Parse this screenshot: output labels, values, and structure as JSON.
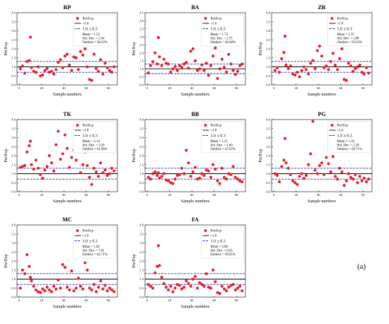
{
  "figure_label": "(a)",
  "colors": {
    "points": "#e8202a",
    "unity_line": "#000000",
    "band_line": "#1f1fb4"
  },
  "chart_data": [
    {
      "type": "scatter",
      "title": "RP",
      "xlabel": "Sample numbers",
      "ylabel": "Pre/Exp",
      "xlim": [
        -2,
        88
      ],
      "ylim": [
        0,
        4.0
      ],
      "xticks": [
        "0",
        "20",
        "40",
        "60",
        "80"
      ],
      "yticks": [
        "0.0",
        "0.5",
        "1.0",
        "1.5",
        "2.0",
        "2.5",
        "3.0",
        "3.5",
        "4.0"
      ],
      "legend": {
        "points": "Pre/Exp",
        "unity": "=1.0",
        "band": "1.0 ± 0.3",
        "mean": "Mean = 1.52",
        "std": "Std. Dev. = 2.44",
        "outliers": "Outliers = 58.33%"
      },
      "x": [
        1,
        3,
        5,
        7,
        9,
        10,
        11,
        13,
        15,
        17,
        19,
        21,
        23,
        25,
        27,
        29,
        31,
        33,
        35,
        37,
        39,
        41,
        43,
        45,
        47,
        49,
        51,
        53,
        55,
        57,
        59,
        61,
        63,
        65,
        67,
        69,
        71,
        73,
        75,
        77,
        79,
        81,
        83,
        85
      ],
      "y": [
        0.9,
        1.05,
        0.65,
        1.3,
        1.35,
        2.65,
        0.95,
        0.75,
        0.7,
        1.0,
        0.5,
        0.55,
        0.8,
        0.9,
        0.7,
        0.75,
        0.6,
        0.85,
        1.25,
        1.4,
        0.95,
        1.6,
        1.7,
        1.1,
        0.8,
        1.55,
        1.5,
        0.85,
        1.85,
        1.65,
        2.0,
        1.0,
        0.3,
        0.25,
        1.7,
        0.9,
        0.75,
        1.4,
        0.6,
        1.2,
        0.95,
        0.8,
        0.7,
        1.0
      ]
    },
    {
      "type": "scatter",
      "title": "BA",
      "xlabel": "Sample numbers",
      "ylabel": "Pre/Exp",
      "xlim": [
        -2,
        88
      ],
      "ylim": [
        0,
        4.5
      ],
      "xticks": [
        "0",
        "20",
        "40",
        "60",
        "80"
      ],
      "yticks": [
        "0.0",
        "0.5",
        "1.0",
        "1.5",
        "2.0",
        "2.5",
        "3.0",
        "3.5",
        "4.0",
        "4.5"
      ],
      "legend": {
        "points": "Pre/Exp",
        "unity": "=1.0",
        "band": "1.0 ± 0.3",
        "mean": "Mean = 1.73",
        "std": "Std. Dev. = 2.75",
        "outliers": "Outliers = 40.48%"
      },
      "x": [
        1,
        3,
        5,
        7,
        9,
        10,
        11,
        13,
        15,
        17,
        19,
        21,
        23,
        25,
        27,
        29,
        31,
        33,
        35,
        37,
        39,
        41,
        43,
        45,
        47,
        49,
        51,
        53,
        55,
        57,
        59,
        61,
        63,
        65,
        67,
        69,
        71,
        73,
        75,
        77,
        79,
        81,
        83,
        85
      ],
      "y": [
        0.75,
        1.2,
        1.45,
        2.0,
        1.3,
        2.95,
        1.75,
        1.2,
        1.6,
        1.35,
        1.3,
        0.8,
        1.0,
        1.15,
        0.9,
        1.2,
        1.1,
        1.3,
        1.4,
        1.05,
        2.1,
        2.25,
        1.5,
        0.9,
        1.0,
        1.25,
        0.9,
        1.35,
        0.6,
        1.2,
        1.8,
        2.3,
        0.4,
        1.0,
        1.6,
        1.1,
        0.8,
        1.9,
        1.3,
        0.9,
        0.65,
        0.85,
        1.2,
        1.3
      ]
    },
    {
      "type": "scatter",
      "title": "ZR",
      "xlabel": "Sample numbers",
      "ylabel": "Pre/Exp",
      "xlim": [
        -2,
        88
      ],
      "ylim": [
        0,
        4.0
      ],
      "xticks": [
        "0",
        "20",
        "40",
        "60",
        "80"
      ],
      "yticks": [
        "0.0",
        "0.5",
        "1.0",
        "1.5",
        "2.0",
        "2.5",
        "3.0",
        "3.5",
        "4.0"
      ],
      "legend": {
        "points": "Pre/Exp",
        "unity": "=1.0",
        "band": "1.0 ± 0.3",
        "mean": "Mean = 1.37",
        "std": "Std. Dev. = 2.08",
        "outliers": "Outliers = 59.52%"
      },
      "x": [
        1,
        3,
        5,
        7,
        9,
        10,
        11,
        13,
        15,
        17,
        19,
        21,
        23,
        25,
        27,
        29,
        31,
        33,
        35,
        37,
        39,
        41,
        43,
        45,
        47,
        49,
        51,
        53,
        55,
        57,
        59,
        61,
        63,
        65,
        67,
        69,
        71,
        73,
        75,
        77,
        79,
        81,
        83,
        85
      ],
      "y": [
        0.8,
        0.95,
        0.7,
        1.45,
        1.8,
        2.7,
        1.1,
        0.9,
        1.05,
        0.6,
        0.55,
        0.7,
        0.45,
        0.8,
        1.0,
        0.85,
        0.6,
        1.2,
        1.35,
        0.9,
        1.9,
        2.15,
        1.6,
        0.95,
        1.05,
        0.85,
        1.3,
        1.75,
        1.1,
        0.85,
        1.45,
        2.0,
        0.3,
        0.25,
        1.2,
        1.05,
        0.75,
        0.9,
        1.0,
        1.1,
        0.7,
        0.6,
        0.95,
        0.65
      ]
    },
    {
      "type": "scatter",
      "title": "TK",
      "xlabel": "Sample numbers",
      "ylabel": "Pre/Exp",
      "xlim": [
        -2,
        88
      ],
      "ylim": [
        0,
        4.0
      ],
      "xticks": [
        "0",
        "20",
        "40",
        "60",
        "80"
      ],
      "yticks": [
        "0.0",
        "0.5",
        "1.0",
        "1.5",
        "2.0",
        "2.5",
        "3.0",
        "3.5",
        "4.0"
      ],
      "legend": {
        "points": "Pre/Exp",
        "unity": "=1.0",
        "band": "1.0 ± 0.3",
        "mean": "Mean = 2.14",
        "std": "Std. Dev. = 3.26",
        "outliers": "Outliers = 61.90%"
      },
      "x": [
        1,
        3,
        5,
        7,
        9,
        10,
        11,
        13,
        15,
        17,
        19,
        21,
        23,
        25,
        27,
        29,
        31,
        33,
        35,
        37,
        39,
        41,
        43,
        45,
        47,
        49,
        51,
        53,
        55,
        57,
        59,
        61,
        63,
        65,
        67,
        69,
        71,
        73,
        75,
        77,
        79,
        81,
        83,
        85
      ],
      "y": [
        1.35,
        1.4,
        1.45,
        2.2,
        2.55,
        2.8,
        1.5,
        1.25,
        1.75,
        1.3,
        0.95,
        0.75,
        1.2,
        1.4,
        2.0,
        1.6,
        1.15,
        2.6,
        3.35,
        1.8,
        2.1,
        3.15,
        2.4,
        1.35,
        1.9,
        2.3,
        1.75,
        2.9,
        1.05,
        1.5,
        2.2,
        1.45,
        0.8,
        0.4,
        1.3,
        1.1,
        0.85,
        1.6,
        1.05,
        1.2,
        0.9,
        1.0,
        1.3,
        1.15
      ]
    },
    {
      "type": "scatter",
      "title": "BB",
      "xlabel": "Sample numbers",
      "ylabel": "Pre/Exp",
      "xlim": [
        -2,
        88
      ],
      "ylim": [
        0,
        4.0
      ],
      "xticks": [
        "0",
        "20",
        "40",
        "60",
        "80"
      ],
      "yticks": [
        "0.0",
        "0.5",
        "1.0",
        "1.5",
        "2.0",
        "2.5",
        "3.0",
        "3.5",
        "4.0"
      ],
      "legend": {
        "points": "Pre/Exp",
        "unity": "=1.0",
        "band": "1.0 ± 0.3",
        "mean": "Mean = 1.25",
        "std": "Std. Dev. = 1.60",
        "outliers": "Outliers = 47.62%"
      },
      "x": [
        1,
        3,
        5,
        7,
        9,
        10,
        11,
        13,
        15,
        17,
        19,
        21,
        23,
        25,
        27,
        29,
        31,
        33,
        35,
        37,
        39,
        41,
        43,
        45,
        47,
        49,
        51,
        53,
        55,
        57,
        59,
        61,
        63,
        65,
        67,
        69,
        71,
        73,
        75,
        77,
        79,
        81,
        83,
        85
      ],
      "y": [
        0.8,
        0.7,
        1.0,
        1.1,
        0.9,
        1.05,
        0.75,
        0.85,
        1.0,
        0.65,
        0.6,
        0.5,
        0.45,
        0.7,
        0.9,
        0.95,
        1.3,
        1.0,
        2.3,
        1.6,
        0.85,
        1.1,
        1.35,
        0.7,
        0.75,
        1.0,
        0.9,
        1.2,
        1.15,
        0.8,
        1.5,
        1.25,
        0.6,
        0.45,
        1.3,
        0.8,
        0.7,
        1.0,
        0.95,
        1.4,
        0.8,
        0.7,
        0.6,
        0.55
      ]
    },
    {
      "type": "scatter",
      "title": "PG",
      "xlabel": "Sample numbers",
      "ylabel": "Pre/Exp",
      "xlim": [
        -2,
        88
      ],
      "ylim": [
        0,
        4.0
      ],
      "xticks": [
        "0",
        "20",
        "40",
        "60",
        "80"
      ],
      "yticks": [
        "0.0",
        "0.5",
        "1.0",
        "1.5",
        "2.0",
        "2.5",
        "3.0",
        "3.5",
        "4.0"
      ],
      "legend": {
        "points": "Pre/Exp",
        "unity": "=1.0",
        "band": "1.0 ± 0.3",
        "mean": "Mean = 1.50",
        "std": "Std. Dev. = 2.38",
        "outliers": "Outliers = 60.71%"
      },
      "x": [
        1,
        3,
        5,
        7,
        9,
        10,
        11,
        13,
        15,
        17,
        19,
        21,
        23,
        25,
        27,
        29,
        31,
        33,
        35,
        37,
        39,
        41,
        43,
        45,
        47,
        49,
        51,
        53,
        55,
        57,
        59,
        61,
        63,
        65,
        67,
        69,
        71,
        73,
        75,
        77,
        79,
        81,
        83,
        85
      ],
      "y": [
        1.0,
        0.9,
        0.55,
        1.4,
        1.75,
        2.95,
        1.6,
        1.3,
        0.95,
        0.6,
        0.5,
        0.4,
        0.85,
        1.0,
        0.75,
        0.9,
        1.5,
        2.1,
        3.9,
        1.2,
        1.0,
        1.45,
        1.6,
        0.95,
        1.9,
        1.55,
        1.1,
        1.95,
        0.85,
        0.7,
        1.3,
        1.1,
        0.35,
        0.6,
        1.0,
        0.8,
        0.7,
        0.95,
        0.5,
        0.85,
        0.6,
        0.75,
        0.55,
        0.7
      ]
    },
    {
      "type": "scatter",
      "title": "MC",
      "xlabel": "Sample numbers",
      "ylabel": "Pre/Exp",
      "xlim": [
        -2,
        88
      ],
      "ylim": [
        0,
        4.0
      ],
      "xticks": [
        "0",
        "20",
        "40",
        "60",
        "80"
      ],
      "yticks": [
        "0.0",
        "0.5",
        "1.0",
        "1.5",
        "2.0",
        "2.5",
        "3.0",
        "3.5",
        "4.0"
      ],
      "legend": {
        "points": "Pre/Exp",
        "unity": "=1.0",
        "band": "1.0 ± 0.3",
        "mean": "Mean = 1.82",
        "std": "Std. Dev. = 7.61",
        "outliers": "Outliers = 85.71%"
      },
      "x": [
        1,
        3,
        5,
        7,
        9,
        10,
        11,
        13,
        15,
        17,
        19,
        21,
        23,
        25,
        27,
        29,
        31,
        33,
        35,
        37,
        39,
        41,
        43,
        45,
        47,
        49,
        51,
        53,
        55,
        57,
        59,
        61,
        63,
        65,
        67,
        69,
        71,
        73,
        75,
        77,
        79,
        81,
        83,
        85
      ],
      "y": [
        0.5,
        1.5,
        1.3,
        2.35,
        1.7,
        1.1,
        0.9,
        0.6,
        0.4,
        0.3,
        0.25,
        0.45,
        0.35,
        0.55,
        0.4,
        0.3,
        0.6,
        0.45,
        0.95,
        0.5,
        1.8,
        1.65,
        0.55,
        0.4,
        1.45,
        0.35,
        0.5,
        1.05,
        0.6,
        0.45,
        1.9,
        1.5,
        0.5,
        0.4,
        0.7,
        0.3,
        0.55,
        0.9,
        0.45,
        0.65,
        0.35,
        0.5,
        0.4,
        0.3
      ]
    },
    {
      "type": "scatter",
      "title": "FA",
      "xlabel": "Sample numbers",
      "ylabel": "Pre/Exp",
      "xlim": [
        -2,
        88
      ],
      "ylim": [
        0,
        4.0
      ],
      "xticks": [
        "0",
        "20",
        "40",
        "60",
        "80"
      ],
      "yticks": [
        "0.0",
        "0.5",
        "1.0",
        "1.5",
        "2.0",
        "2.5",
        "3.0",
        "3.5",
        "4.0"
      ],
      "legend": {
        "points": "Pre/Exp",
        "unity": "=1.0",
        "band": "1.0 ± 0.3",
        "mean": "Mean = 0.88",
        "std": "Std. Dev. = 0.65",
        "outliers": "Outliers = 69.05%"
      },
      "x": [
        1,
        3,
        5,
        7,
        9,
        10,
        11,
        13,
        15,
        17,
        19,
        21,
        23,
        25,
        27,
        29,
        31,
        33,
        35,
        37,
        39,
        41,
        43,
        45,
        47,
        49,
        51,
        53,
        55,
        57,
        59,
        61,
        63,
        65,
        67,
        69,
        71,
        73,
        75,
        77,
        79,
        81,
        83,
        85
      ],
      "y": [
        0.7,
        0.6,
        0.5,
        1.35,
        1.7,
        2.85,
        1.75,
        1.1,
        0.75,
        0.55,
        0.4,
        0.6,
        0.3,
        0.5,
        0.7,
        0.65,
        0.45,
        0.55,
        0.9,
        0.75,
        0.6,
        1.0,
        1.15,
        0.5,
        0.8,
        0.7,
        0.6,
        1.3,
        0.55,
        0.5,
        1.5,
        0.85,
        0.25,
        0.2,
        0.6,
        0.45,
        0.35,
        0.55,
        0.65,
        0.7,
        0.4,
        0.5,
        0.6,
        0.35
      ]
    }
  ]
}
